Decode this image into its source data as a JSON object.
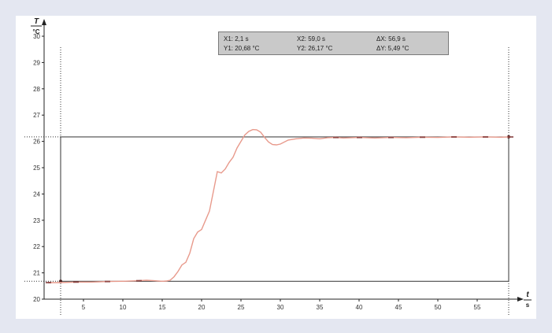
{
  "chart_data": {
    "type": "line",
    "y_axis_label_top": "T",
    "y_axis_label_bottom": "°C",
    "x_axis_label_top": "t",
    "x_axis_label_bottom": "s",
    "xlim": [
      0,
      59.5
    ],
    "ylim": [
      20,
      30.3
    ],
    "x_ticks": [
      5,
      10,
      15,
      20,
      25,
      30,
      35,
      40,
      45,
      50,
      55
    ],
    "y_ticks": [
      20,
      21,
      22,
      23,
      24,
      25,
      26,
      27,
      28,
      29,
      30
    ],
    "grid": false,
    "legend": "none",
    "line_color": "#e89a8c",
    "marker_color": "#7a2d2d",
    "series": [
      {
        "x": [
          0.5,
          2,
          4,
          6,
          8,
          10,
          12,
          13,
          14,
          15,
          15.5,
          16,
          16.5,
          17,
          17.5,
          18,
          18.5,
          19,
          19.5,
          20,
          20.5,
          21,
          21.5,
          22,
          22.5,
          23,
          23.5,
          24,
          24.5,
          25,
          25.5,
          26,
          26.5,
          27,
          27.5,
          28,
          28.5,
          29,
          29.5,
          30,
          31,
          32,
          33,
          34,
          35,
          36,
          37,
          38,
          40,
          42,
          44,
          46,
          48,
          50,
          52,
          54,
          56,
          58,
          59.2
        ],
        "y": [
          20.63,
          20.63,
          20.65,
          20.65,
          20.67,
          20.68,
          20.7,
          20.72,
          20.7,
          20.68,
          20.69,
          20.72,
          20.85,
          21.05,
          21.3,
          21.4,
          21.75,
          22.3,
          22.55,
          22.65,
          23.0,
          23.35,
          24.1,
          24.85,
          24.8,
          24.95,
          25.2,
          25.4,
          25.75,
          26.0,
          26.25,
          26.38,
          26.45,
          26.44,
          26.35,
          26.15,
          25.98,
          25.88,
          25.87,
          25.9,
          26.05,
          26.1,
          26.13,
          26.12,
          26.1,
          26.14,
          26.15,
          26.13,
          26.15,
          26.13,
          26.15,
          26.14,
          26.16,
          26.15,
          26.17,
          26.16,
          26.17,
          26.16,
          26.17
        ]
      }
    ],
    "cursor": {
      "x1": 2.1,
      "y1": 20.68,
      "x2": 59.0,
      "y2": 26.17
    }
  },
  "readout": {
    "x1": "X1: 2,1 s",
    "x2": "X2: 59,0 s",
    "dx": "ΔX: 56,9 s",
    "y1": "Y1: 20,68 °C",
    "y2": "Y2: 26,17 °C",
    "dy": "ΔY: 5,49 °C"
  }
}
